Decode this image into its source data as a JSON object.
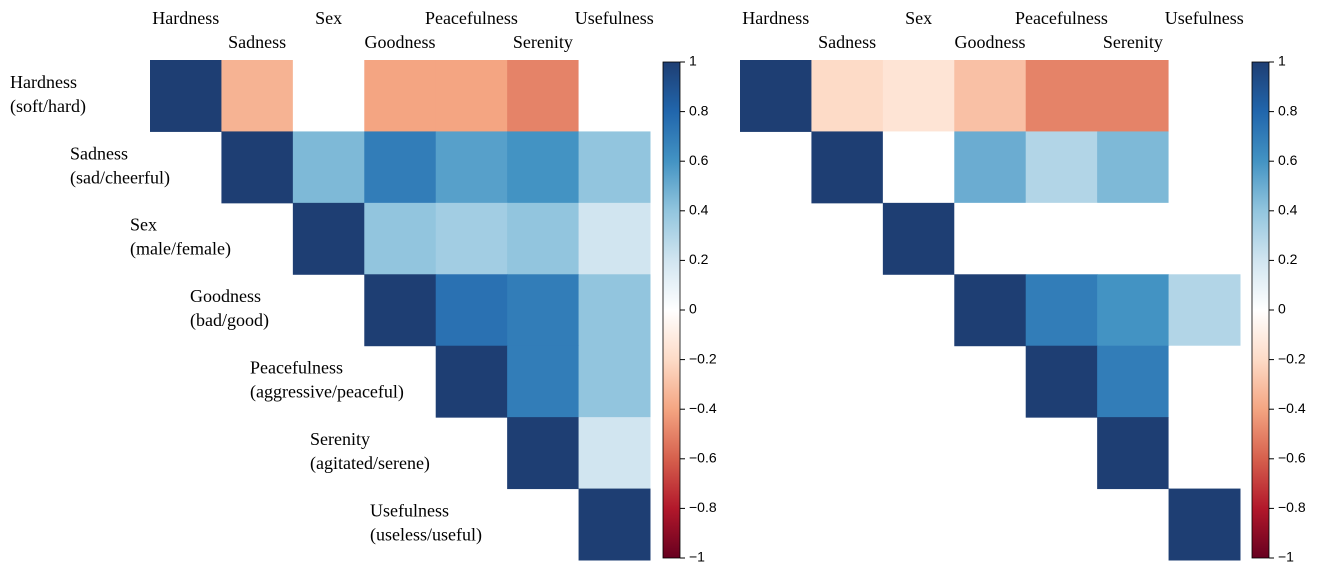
{
  "chart_data": [
    {
      "type": "heatmap",
      "categories": [
        "Hardness",
        "Sadness",
        "Sex",
        "Goodness",
        "Peacefulness",
        "Serenity",
        "Usefulness"
      ],
      "row_labels": [
        [
          "Hardness",
          "(soft/hard)"
        ],
        [
          "Sadness",
          "(sad/cheerful)"
        ],
        [
          "Sex",
          "(male/female)"
        ],
        [
          "Goodness",
          "(bad/good)"
        ],
        [
          "Peacefulness",
          "(aggressive/peaceful)"
        ],
        [
          "Serenity",
          "(agitated/serene)"
        ],
        [
          "Usefulness",
          "(useless/useful)"
        ]
      ],
      "values": [
        [
          1,
          -0.35,
          0,
          -0.4,
          -0.4,
          -0.5,
          0
        ],
        [
          null,
          1,
          0.45,
          0.7,
          0.55,
          0.6,
          0.4
        ],
        [
          null,
          null,
          1,
          0.4,
          0.35,
          0.4,
          0.2
        ],
        [
          null,
          null,
          null,
          1,
          0.75,
          0.7,
          0.4
        ],
        [
          null,
          null,
          null,
          null,
          1,
          0.7,
          0.4
        ],
        [
          null,
          null,
          null,
          null,
          null,
          1,
          0.2
        ],
        [
          null,
          null,
          null,
          null,
          null,
          null,
          1
        ]
      ],
      "zlim": [
        -1,
        1
      ],
      "zticks": [
        1,
        0.8,
        0.6,
        0.4,
        0.2,
        0,
        {
          "value": -0.2,
          "label": "−0.2"
        },
        {
          "value": -0.4,
          "label": "−0.4"
        },
        {
          "value": -0.6,
          "label": "−0.6"
        },
        {
          "value": -0.8,
          "label": "−0.8"
        },
        {
          "value": -1,
          "label": "−1"
        }
      ]
    },
    {
      "type": "heatmap",
      "categories": [
        "Hardness",
        "Sadness",
        "Sex",
        "Goodness",
        "Peacefulness",
        "Serenity",
        "Usefulness"
      ],
      "values": [
        [
          1,
          -0.2,
          -0.15,
          -0.3,
          -0.5,
          -0.5,
          0
        ],
        [
          null,
          1,
          0,
          0.5,
          0.3,
          0.45,
          0
        ],
        [
          null,
          null,
          1,
          0,
          0,
          0,
          0
        ],
        [
          null,
          null,
          null,
          1,
          0.7,
          0.6,
          0.3
        ],
        [
          null,
          null,
          null,
          null,
          1,
          0.7,
          0
        ],
        [
          null,
          null,
          null,
          null,
          null,
          1,
          0
        ],
        [
          null,
          null,
          null,
          null,
          null,
          null,
          1
        ]
      ],
      "zlim": [
        -1,
        1
      ],
      "zticks": [
        1,
        0.8,
        0.6,
        0.4,
        0.2,
        0,
        {
          "value": -0.2,
          "label": "−0.2"
        },
        {
          "value": -0.4,
          "label": "−0.4"
        },
        {
          "value": -0.6,
          "label": "−0.6"
        },
        {
          "value": -0.8,
          "label": "−0.8"
        },
        {
          "value": -1,
          "label": "−1"
        }
      ]
    }
  ]
}
